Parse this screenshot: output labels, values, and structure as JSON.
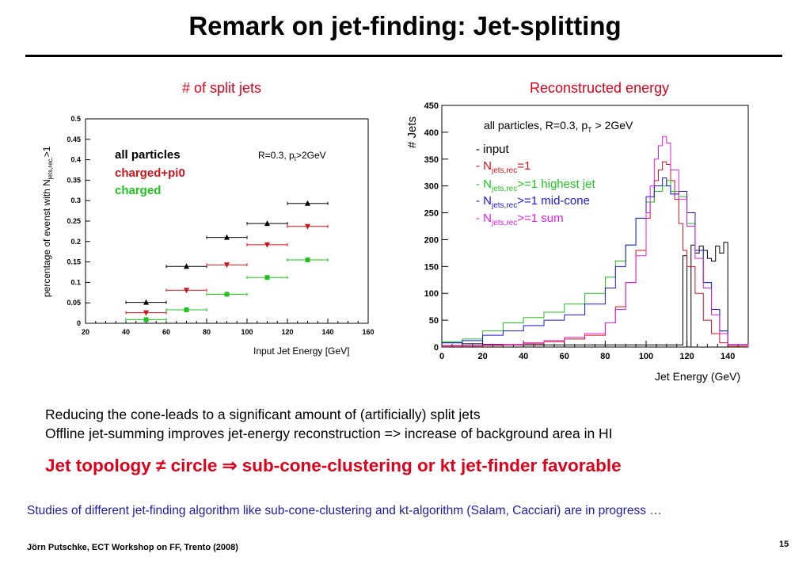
{
  "title": "Remark on jet-finding: Jet-splitting",
  "left_panel": {
    "heading": "# of split jets",
    "legend": [
      {
        "label": "all particles",
        "color": "#000000"
      },
      {
        "label": "charged+pi0",
        "color": "#d0141c"
      },
      {
        "label": "charged",
        "color": "#1fc21f"
      }
    ],
    "condition": "R=0.3, pt>2GeV",
    "condition_main": "R=0.3, p",
    "condition_sub": "t",
    "condition_tail": ">2GeV",
    "ylabel_main": "percentage of evenst with  N",
    "ylabel_sub": "jets,rec.",
    "ylabel_tail": ">1",
    "xlabel": "Input Jet Energy [GeV]"
  },
  "right_panel": {
    "heading": "Reconstructed energy",
    "condition_main": "all particles, R=0.3, p",
    "condition_sub": "T",
    "condition_tail": " > 2GeV",
    "ylabel": "# Jets",
    "xlabel": "Jet Energy (GeV)",
    "legend": [
      {
        "prefix": "- input",
        "sub": "",
        "suffix": "",
        "color": "#000000"
      },
      {
        "prefix": "- N",
        "sub": "jets,rec",
        "suffix": "=1",
        "color": "#d0141c"
      },
      {
        "prefix": "- N",
        "sub": "jets,rec",
        "suffix": ">=1 highest jet",
        "color": "#1fc21f"
      },
      {
        "prefix": "- N",
        "sub": "jets,rec",
        "suffix": ">=1 mid-cone",
        "color": "#1a1ad6"
      },
      {
        "prefix": "- N",
        "sub": "jets,rec",
        "suffix": ">=1 sum",
        "color": "#e020e0"
      }
    ]
  },
  "body_lines": [
    "Reducing the cone-leads to a significant amount of (artificially) split jets",
    "Offline jet-summing improves jet-energy reconstruction => increase of background area in HI"
  ],
  "topology": "Jet topology ≠ circle ⇒ sub-cone-clustering or kt jet-finder favorable",
  "studies": "Studies of different jet-finding algorithm like sub-cone-clustering and kt-algorithm (Salam, Cacciari) are in progress …",
  "footer": "Jörn Putschke, ECT Workshop on FF, Trento (2008)",
  "page_number": "15",
  "chart_data": [
    {
      "type": "scatter",
      "xlabel": "Input Jet Energy [GeV]",
      "ylabel": "percentage of evenst with  Njets,rec.>1",
      "xlim": [
        20,
        160
      ],
      "ylim": [
        0,
        0.5
      ],
      "xticks": [
        20,
        40,
        60,
        80,
        100,
        120,
        140,
        160
      ],
      "yticks": [
        0,
        0.05,
        0.1,
        0.15,
        0.2,
        0.25,
        0.3,
        0.35,
        0.4,
        0.45,
        0.5
      ],
      "grid": false,
      "series": [
        {
          "name": "all particles",
          "marker": "triangle-up",
          "color": "#000000",
          "x": [
            50,
            70,
            90,
            110,
            130
          ],
          "y": [
            0.051,
            0.139,
            0.21,
            0.244,
            0.293
          ],
          "xerr": 10
        },
        {
          "name": "charged+pi0",
          "marker": "triangle-down",
          "color": "#d0141c",
          "x": [
            50,
            70,
            90,
            110,
            130
          ],
          "y": [
            0.026,
            0.081,
            0.143,
            0.192,
            0.237
          ],
          "xerr": 10
        },
        {
          "name": "charged",
          "marker": "square",
          "color": "#1fc21f",
          "x": [
            50,
            70,
            90,
            110,
            130
          ],
          "y": [
            0.009,
            0.033,
            0.071,
            0.112,
            0.155
          ],
          "xerr": 10
        }
      ]
    },
    {
      "type": "line",
      "step": true,
      "ylabel": "# Jets",
      "xlabel": "Jet Energy (GeV)",
      "xlim": [
        0,
        150
      ],
      "ylim": [
        0,
        450
      ],
      "xticks": [
        0,
        20,
        40,
        60,
        80,
        100,
        120,
        140
      ],
      "yticks": [
        0,
        50,
        100,
        150,
        200,
        250,
        300,
        350,
        400,
        450
      ],
      "series": [
        {
          "name": "input",
          "color": "#000000",
          "x": [
            0,
            10,
            20,
            30,
            40,
            50,
            60,
            70,
            80,
            90,
            100,
            110,
            116,
            118,
            120,
            122,
            124,
            126,
            128,
            130,
            132,
            134,
            136,
            138,
            140,
            150
          ],
          "y": [
            8,
            6,
            5,
            4,
            4,
            4,
            4,
            4,
            4,
            4,
            4,
            4,
            4,
            170,
            0,
            190,
            175,
            188,
            180,
            165,
            160,
            188,
            175,
            195,
            0,
            0
          ]
        },
        {
          "name": "Njets,rec=1",
          "color": "#d0141c",
          "x": [
            0,
            10,
            20,
            30,
            40,
            50,
            60,
            70,
            80,
            85,
            90,
            95,
            100,
            102,
            104,
            106,
            108,
            110,
            112,
            114,
            116,
            118,
            120,
            124,
            128,
            132,
            136,
            140,
            150
          ],
          "y": [
            2,
            2,
            3,
            4,
            6,
            10,
            15,
            22,
            45,
            75,
            120,
            180,
            240,
            270,
            310,
            330,
            345,
            340,
            310,
            275,
            230,
            180,
            150,
            100,
            50,
            25,
            8,
            2,
            0
          ]
        },
        {
          "name": "Njets,rec>=1 highest jet",
          "color": "#1fc21f",
          "x": [
            0,
            10,
            20,
            30,
            40,
            50,
            60,
            70,
            80,
            85,
            90,
            95,
            100,
            104,
            108,
            110,
            112,
            116,
            120,
            124,
            128,
            132,
            136,
            140,
            150
          ],
          "y": [
            10,
            15,
            30,
            45,
            55,
            65,
            80,
            100,
            130,
            160,
            190,
            240,
            270,
            290,
            300,
            310,
            290,
            280,
            230,
            180,
            120,
            70,
            30,
            5,
            0
          ]
        },
        {
          "name": "Njets,rec>=1 mid-cone",
          "color": "#1a1ad6",
          "x": [
            0,
            10,
            20,
            30,
            40,
            50,
            60,
            70,
            80,
            85,
            90,
            95,
            100,
            104,
            108,
            110,
            112,
            116,
            120,
            124,
            128,
            132,
            136,
            140,
            150
          ],
          "y": [
            8,
            12,
            22,
            30,
            40,
            50,
            60,
            80,
            110,
            150,
            190,
            240,
            280,
            300,
            315,
            300,
            285,
            290,
            250,
            180,
            120,
            70,
            30,
            5,
            0
          ]
        },
        {
          "name": "Njets,rec>=1 sum",
          "color": "#e020e0",
          "x": [
            0,
            10,
            20,
            30,
            40,
            50,
            60,
            70,
            80,
            85,
            90,
            95,
            100,
            102,
            104,
            106,
            108,
            110,
            112,
            116,
            120,
            124,
            128,
            132,
            136,
            140,
            150
          ],
          "y": [
            3,
            3,
            4,
            5,
            8,
            12,
            18,
            25,
            45,
            70,
            120,
            170,
            250,
            300,
            350,
            375,
            392,
            380,
            330,
            275,
            225,
            165,
            110,
            60,
            25,
            5,
            0
          ]
        }
      ]
    }
  ]
}
